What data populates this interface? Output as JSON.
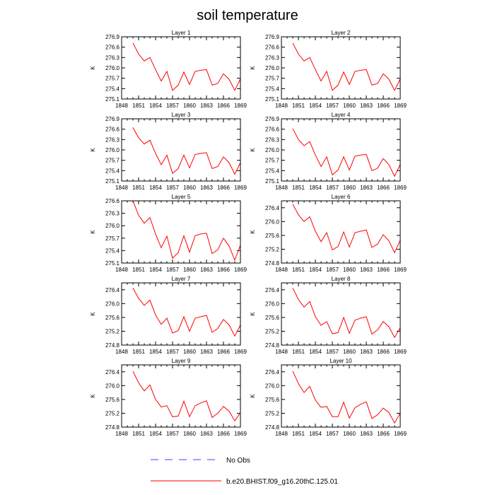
{
  "figure": {
    "title": "soil temperature"
  },
  "colors": {
    "model": "#ff0000",
    "obs": "#4040ff"
  },
  "legend": {
    "entries": [
      {
        "label": "No Obs",
        "style": "dashed",
        "color": "#4040ff"
      },
      {
        "label": "b.e20.BHIST.f09_g16.20thC.125.01",
        "style": "solid",
        "color": "#ff0000"
      }
    ]
  },
  "chart_data": [
    {
      "type": "line",
      "title": "Layer 1",
      "xlabel": "",
      "ylabel": "K",
      "xlim": [
        1848,
        1869
      ],
      "ylim": [
        275.1,
        276.9
      ],
      "xticks": [
        1848,
        1851,
        1854,
        1857,
        1860,
        1863,
        1866,
        1869
      ],
      "yticks": [
        275.1,
        275.4,
        275.7,
        276.0,
        276.3,
        276.6,
        276.9
      ],
      "ytick_labels": [
        "275.1",
        "275.4",
        "275.7",
        "276.0",
        "276.3",
        "276.6",
        "276.9"
      ],
      "x": [
        1850,
        1851,
        1852,
        1853,
        1854,
        1855,
        1856,
        1857,
        1858,
        1859,
        1860,
        1861,
        1862,
        1863,
        1864,
        1865,
        1866,
        1867,
        1868,
        1869
      ],
      "series": [
        {
          "values": [
            276.72,
            276.4,
            276.2,
            276.3,
            275.95,
            275.62,
            275.9,
            275.35,
            275.5,
            275.88,
            275.52,
            275.9,
            275.93,
            275.95,
            275.5,
            275.55,
            275.83,
            275.67,
            275.35,
            275.68
          ]
        }
      ]
    },
    {
      "type": "line",
      "title": "Layer 2",
      "xlabel": "",
      "ylabel": "K",
      "xlim": [
        1848,
        1869
      ],
      "ylim": [
        275.1,
        276.9
      ],
      "xticks": [
        1848,
        1851,
        1854,
        1857,
        1860,
        1863,
        1866,
        1869
      ],
      "yticks": [
        275.1,
        275.4,
        275.7,
        276.0,
        276.3,
        276.6,
        276.9
      ],
      "ytick_labels": [
        "275.1",
        "275.4",
        "275.7",
        "276.0",
        "276.3",
        "276.6",
        "276.9"
      ],
      "x": [
        1850,
        1851,
        1852,
        1853,
        1854,
        1855,
        1856,
        1857,
        1858,
        1859,
        1860,
        1861,
        1862,
        1863,
        1864,
        1865,
        1866,
        1867,
        1868,
        1869
      ],
      "series": [
        {
          "values": [
            276.72,
            276.4,
            276.2,
            276.3,
            275.95,
            275.62,
            275.9,
            275.35,
            275.5,
            275.88,
            275.52,
            275.9,
            275.93,
            275.95,
            275.5,
            275.55,
            275.83,
            275.67,
            275.35,
            275.68
          ]
        }
      ]
    },
    {
      "type": "line",
      "title": "Layer 3",
      "xlabel": "",
      "ylabel": "K",
      "xlim": [
        1848,
        1869
      ],
      "ylim": [
        275.1,
        276.9
      ],
      "xticks": [
        1848,
        1851,
        1854,
        1857,
        1860,
        1863,
        1866,
        1869
      ],
      "yticks": [
        275.1,
        275.4,
        275.7,
        276.0,
        276.3,
        276.6,
        276.9
      ],
      "ytick_labels": [
        "275.1",
        "275.4",
        "275.7",
        "276.0",
        "276.3",
        "276.6",
        "276.9"
      ],
      "x": [
        1850,
        1851,
        1852,
        1853,
        1854,
        1855,
        1856,
        1857,
        1858,
        1859,
        1860,
        1861,
        1862,
        1863,
        1864,
        1865,
        1866,
        1867,
        1868,
        1869
      ],
      "series": [
        {
          "values": [
            276.65,
            276.35,
            276.17,
            276.28,
            275.9,
            275.57,
            275.85,
            275.32,
            275.46,
            275.85,
            275.48,
            275.87,
            275.9,
            275.92,
            275.46,
            275.52,
            275.8,
            275.63,
            275.3,
            275.63
          ]
        }
      ]
    },
    {
      "type": "line",
      "title": "Layer 4",
      "xlabel": "",
      "ylabel": "K",
      "xlim": [
        1848,
        1869
      ],
      "ylim": [
        275.1,
        276.9
      ],
      "xticks": [
        1848,
        1851,
        1854,
        1857,
        1860,
        1863,
        1866,
        1869
      ],
      "yticks": [
        275.1,
        275.4,
        275.7,
        276.0,
        276.3,
        276.6,
        276.9
      ],
      "ytick_labels": [
        "275.1",
        "275.4",
        "275.7",
        "276.0",
        "276.3",
        "276.6",
        "276.9"
      ],
      "x": [
        1850,
        1851,
        1852,
        1853,
        1854,
        1855,
        1856,
        1857,
        1858,
        1859,
        1860,
        1861,
        1862,
        1863,
        1864,
        1865,
        1866,
        1867,
        1868,
        1869
      ],
      "series": [
        {
          "values": [
            276.62,
            276.3,
            276.12,
            276.24,
            275.85,
            275.52,
            275.8,
            275.28,
            275.42,
            275.8,
            275.42,
            275.82,
            275.85,
            275.87,
            275.4,
            275.47,
            275.75,
            275.57,
            275.24,
            275.58
          ]
        }
      ]
    },
    {
      "type": "line",
      "title": "Layer 5",
      "xlabel": "",
      "ylabel": "K",
      "xlim": [
        1848,
        1869
      ],
      "ylim": [
        275.1,
        276.6
      ],
      "xticks": [
        1848,
        1851,
        1854,
        1857,
        1860,
        1863,
        1866,
        1869
      ],
      "yticks": [
        275.1,
        275.4,
        275.7,
        276.0,
        276.3,
        276.6
      ],
      "ytick_labels": [
        "275.1",
        "275.4",
        "275.7",
        "276.0",
        "276.3",
        "276.6"
      ],
      "x": [
        1850,
        1851,
        1852,
        1853,
        1854,
        1855,
        1856,
        1857,
        1858,
        1859,
        1860,
        1861,
        1862,
        1863,
        1864,
        1865,
        1866,
        1867,
        1868,
        1869
      ],
      "series": [
        {
          "values": [
            276.6,
            276.25,
            276.06,
            276.2,
            275.8,
            275.47,
            275.75,
            275.22,
            275.35,
            275.76,
            275.36,
            275.76,
            275.8,
            275.82,
            275.33,
            275.42,
            275.7,
            275.51,
            275.17,
            275.53
          ]
        }
      ]
    },
    {
      "type": "line",
      "title": "Layer 6",
      "xlabel": "",
      "ylabel": "K",
      "xlim": [
        1848,
        1869
      ],
      "ylim": [
        274.8,
        276.6
      ],
      "xticks": [
        1848,
        1851,
        1854,
        1857,
        1860,
        1863,
        1866,
        1869
      ],
      "yticks": [
        274.8,
        275.2,
        275.6,
        276.0,
        276.4
      ],
      "ytick_labels": [
        "274.8",
        "275.2",
        "275.6",
        "276.0",
        "276.4"
      ],
      "x": [
        1850,
        1851,
        1852,
        1853,
        1854,
        1855,
        1856,
        1857,
        1858,
        1859,
        1860,
        1861,
        1862,
        1863,
        1864,
        1865,
        1866,
        1867,
        1868,
        1869
      ],
      "series": [
        {
          "values": [
            276.5,
            276.2,
            276.0,
            276.14,
            275.72,
            275.42,
            275.68,
            275.18,
            275.28,
            275.7,
            275.26,
            275.68,
            275.72,
            275.76,
            275.25,
            275.35,
            275.62,
            275.44,
            275.1,
            275.46
          ]
        }
      ]
    },
    {
      "type": "line",
      "title": "Layer 7",
      "xlabel": "",
      "ylabel": "K",
      "xlim": [
        1848,
        1869
      ],
      "ylim": [
        274.8,
        276.6
      ],
      "xticks": [
        1848,
        1851,
        1854,
        1857,
        1860,
        1863,
        1866,
        1869
      ],
      "yticks": [
        274.8,
        275.2,
        275.6,
        276.0,
        276.4
      ],
      "ytick_labels": [
        "274.8",
        "275.2",
        "275.6",
        "276.0",
        "276.4"
      ],
      "x": [
        1850,
        1851,
        1852,
        1853,
        1854,
        1855,
        1856,
        1857,
        1858,
        1859,
        1860,
        1861,
        1862,
        1863,
        1864,
        1865,
        1866,
        1867,
        1868,
        1869
      ],
      "series": [
        {
          "values": [
            276.45,
            276.15,
            275.95,
            276.1,
            275.67,
            275.4,
            275.58,
            275.15,
            275.22,
            275.62,
            275.2,
            275.58,
            275.62,
            275.66,
            275.17,
            275.28,
            275.54,
            275.38,
            275.06,
            275.38
          ]
        }
      ]
    },
    {
      "type": "line",
      "title": "Layer 8",
      "xlabel": "",
      "ylabel": "K",
      "xlim": [
        1848,
        1869
      ],
      "ylim": [
        274.8,
        276.6
      ],
      "xticks": [
        1848,
        1851,
        1854,
        1857,
        1860,
        1863,
        1866,
        1869
      ],
      "yticks": [
        274.8,
        275.2,
        275.6,
        276.0,
        276.4
      ],
      "ytick_labels": [
        "274.8",
        "275.2",
        "275.6",
        "276.0",
        "276.4"
      ],
      "x": [
        1850,
        1851,
        1852,
        1853,
        1854,
        1855,
        1856,
        1857,
        1858,
        1859,
        1860,
        1861,
        1862,
        1863,
        1864,
        1865,
        1866,
        1867,
        1868,
        1869
      ],
      "series": [
        {
          "values": [
            276.45,
            276.12,
            275.9,
            276.06,
            275.62,
            275.37,
            275.48,
            275.13,
            275.16,
            275.6,
            275.14,
            275.52,
            275.58,
            275.62,
            275.12,
            275.24,
            275.48,
            275.33,
            275.02,
            275.3
          ]
        }
      ]
    },
    {
      "type": "line",
      "title": "Layer 9",
      "xlabel": "",
      "ylabel": "K",
      "xlim": [
        1848,
        1869
      ],
      "ylim": [
        274.8,
        276.6
      ],
      "xticks": [
        1848,
        1851,
        1854,
        1857,
        1860,
        1863,
        1866,
        1869
      ],
      "yticks": [
        274.8,
        275.2,
        275.6,
        276.0,
        276.4
      ],
      "ytick_labels": [
        "274.8",
        "275.2",
        "275.6",
        "276.0",
        "276.4"
      ],
      "x": [
        1850,
        1851,
        1852,
        1853,
        1854,
        1855,
        1856,
        1857,
        1858,
        1859,
        1860,
        1861,
        1862,
        1863,
        1864,
        1865,
        1866,
        1867,
        1868,
        1869
      ],
      "series": [
        {
          "values": [
            276.42,
            276.08,
            275.85,
            276.02,
            275.6,
            275.38,
            275.42,
            275.1,
            275.12,
            275.55,
            275.1,
            275.42,
            275.5,
            275.56,
            275.08,
            275.2,
            275.4,
            275.26,
            274.98,
            275.22
          ]
        }
      ]
    },
    {
      "type": "line",
      "title": "Layer 10",
      "xlabel": "",
      "ylabel": "K",
      "xlim": [
        1848,
        1869
      ],
      "ylim": [
        274.8,
        276.6
      ],
      "xticks": [
        1848,
        1851,
        1854,
        1857,
        1860,
        1863,
        1866,
        1869
      ],
      "yticks": [
        274.8,
        275.2,
        275.6,
        276.0,
        276.4
      ],
      "ytick_labels": [
        "274.8",
        "275.2",
        "275.6",
        "276.0",
        "276.4"
      ],
      "x": [
        1850,
        1851,
        1852,
        1853,
        1854,
        1855,
        1856,
        1857,
        1858,
        1859,
        1860,
        1861,
        1862,
        1863,
        1864,
        1865,
        1866,
        1867,
        1868,
        1869
      ],
      "series": [
        {
          "values": [
            276.42,
            276.06,
            275.8,
            275.98,
            275.58,
            275.37,
            275.4,
            275.1,
            275.1,
            275.52,
            275.06,
            275.36,
            275.46,
            275.53,
            275.05,
            275.16,
            275.35,
            275.22,
            274.92,
            275.2
          ]
        }
      ]
    }
  ]
}
